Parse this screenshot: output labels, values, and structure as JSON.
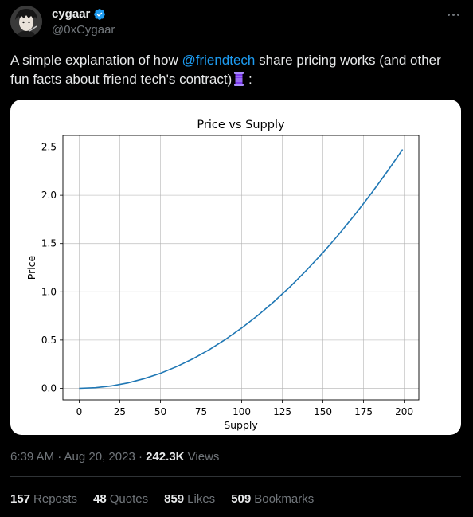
{
  "author": {
    "name": "cygaar",
    "handle": "@0xCygaar"
  },
  "tweet": {
    "text_before": "A simple explanation of how ",
    "mention": "@friendtech",
    "text_after": " share pricing works (and other fun facts about friend tech's contract)",
    "text_end": ":"
  },
  "meta": {
    "time": "6:39 AM · Aug 20, 2023 · ",
    "views_count": "242.3K",
    "views_label": " Views"
  },
  "stats": {
    "reposts_count": "157",
    "reposts_label": "Reposts",
    "quotes_count": "48",
    "quotes_label": "Quotes",
    "likes_count": "859",
    "likes_label": "Likes",
    "bookmarks_count": "509",
    "bookmarks_label": "Bookmarks"
  },
  "colors": {
    "accent": "#1d9bf0",
    "line": "#1f77b4"
  },
  "chart_data": {
    "type": "line",
    "title": "Price vs Supply",
    "xlabel": "Supply",
    "ylabel": "Price",
    "xlim": [
      -10,
      209
    ],
    "ylim": [
      -0.12,
      2.62
    ],
    "xticks": [
      "0",
      "25",
      "50",
      "75",
      "100",
      "125",
      "150",
      "175",
      "200"
    ],
    "yticks": [
      "0.0",
      "0.5",
      "1.0",
      "1.5",
      "2.0",
      "2.5"
    ],
    "grid": true,
    "series": [
      {
        "x": [
          0,
          10,
          20,
          30,
          40,
          50,
          60,
          70,
          80,
          90,
          100,
          110,
          120,
          130,
          140,
          150,
          160,
          170,
          180,
          190,
          199
        ],
        "values": [
          0.0,
          0.006,
          0.025,
          0.056,
          0.1,
          0.156,
          0.225,
          0.306,
          0.4,
          0.506,
          0.625,
          0.756,
          0.9,
          1.056,
          1.225,
          1.406,
          1.6,
          1.806,
          2.025,
          2.256,
          2.475
        ]
      }
    ]
  }
}
